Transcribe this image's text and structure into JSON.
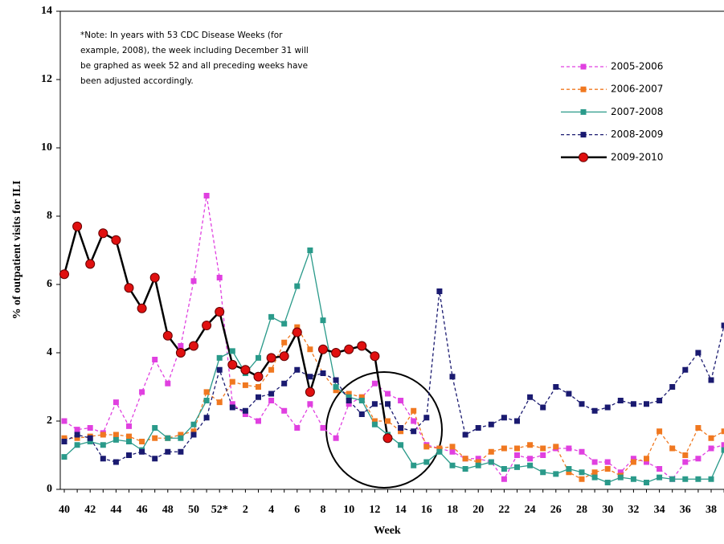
{
  "chart_data": {
    "type": "line",
    "ylabel": "% of outpatient visits for ILI",
    "xlabel": "Week",
    "note": [
      "*Note: In years with 53 CDC Disease Weeks (for",
      "example, 2008), the week including December 31 will",
      "be graphed as week 52 and all preceding weeks have",
      "been adjusted accordingly."
    ],
    "categories": [
      "40",
      null,
      "42",
      null,
      "44",
      null,
      "46",
      null,
      "48",
      null,
      "50",
      null,
      "52*",
      null,
      "2",
      null,
      "4",
      null,
      "6",
      null,
      "8",
      null,
      "10",
      null,
      "12",
      null,
      "14",
      null,
      "16",
      null,
      "18",
      null,
      "20",
      null,
      "22",
      null,
      "24",
      null,
      "26",
      null,
      "28",
      null,
      "30",
      null,
      "32",
      null,
      "34",
      null,
      "36",
      null,
      "38",
      null
    ],
    "ylim": [
      0,
      14
    ],
    "yticks": [
      0,
      2,
      4,
      6,
      8,
      10,
      12,
      14
    ],
    "series": [
      {
        "name": "2005-2006",
        "color": "#e040e0",
        "dash": true,
        "marker": "square",
        "values": [
          2.0,
          1.75,
          1.8,
          1.65,
          2.55,
          1.85,
          2.85,
          3.8,
          3.1,
          4.2,
          6.1,
          8.6,
          6.2,
          2.5,
          2.2,
          2.0,
          2.6,
          2.3,
          1.8,
          2.5,
          1.8,
          1.5,
          2.5,
          2.7,
          3.1,
          2.8,
          2.6,
          2.0,
          1.3,
          1.2,
          1.1,
          0.9,
          0.9,
          0.8,
          0.3,
          1.0,
          0.9,
          1.0,
          1.2,
          1.2,
          1.1,
          0.8,
          0.8,
          0.5,
          0.9,
          0.8,
          0.6,
          0.3,
          0.8,
          0.9,
          1.2,
          1.3
        ]
      },
      {
        "name": "2006-2007",
        "color": "#f07820",
        "dash": true,
        "marker": "square",
        "values": [
          1.5,
          1.5,
          1.55,
          1.6,
          1.6,
          1.55,
          1.4,
          1.5,
          1.5,
          1.6,
          1.7,
          2.85,
          2.55,
          3.15,
          3.05,
          3.0,
          3.5,
          4.3,
          4.75,
          4.1,
          3.4,
          2.9,
          2.8,
          2.7,
          2.0,
          2.0,
          1.7,
          2.3,
          1.25,
          1.2,
          1.25,
          0.9,
          0.8,
          1.1,
          1.2,
          1.2,
          1.3,
          1.2,
          1.25,
          0.5,
          0.3,
          0.5,
          0.6,
          0.4,
          0.8,
          0.9,
          1.7,
          1.2,
          1.0,
          1.8,
          1.5,
          1.7
        ]
      },
      {
        "name": "2007-2008",
        "color": "#2a9a8a",
        "dash": false,
        "marker": "square",
        "values": [
          0.95,
          1.3,
          1.4,
          1.3,
          1.45,
          1.4,
          1.15,
          1.8,
          1.5,
          1.5,
          1.9,
          2.6,
          3.85,
          4.05,
          3.4,
          3.85,
          5.05,
          4.85,
          5.95,
          7.0,
          4.95,
          3.0,
          2.7,
          2.6,
          1.9,
          1.6,
          1.3,
          0.7,
          0.8,
          1.1,
          0.7,
          0.6,
          0.7,
          0.8,
          0.6,
          0.65,
          0.7,
          0.5,
          0.45,
          0.6,
          0.5,
          0.35,
          0.2,
          0.35,
          0.3,
          0.2,
          0.35,
          0.3,
          0.3,
          0.3,
          0.3,
          1.15
        ]
      },
      {
        "name": "2008-2009",
        "color": "#1a1a70",
        "dash": true,
        "marker": "square",
        "values": [
          1.4,
          1.6,
          1.5,
          0.9,
          0.8,
          1.0,
          1.1,
          0.9,
          1.1,
          1.1,
          1.6,
          2.1,
          3.5,
          2.4,
          2.3,
          2.7,
          2.8,
          3.1,
          3.5,
          3.3,
          3.4,
          3.2,
          2.6,
          2.2,
          2.5,
          2.5,
          1.8,
          1.7,
          2.1,
          5.8,
          3.3,
          1.6,
          1.8,
          1.9,
          2.1,
          2.0,
          2.7,
          2.4,
          3.0,
          2.8,
          2.5,
          2.3,
          2.4,
          2.6,
          2.5,
          2.5,
          2.6,
          3.0,
          3.5,
          4.0,
          3.2,
          4.8
        ]
      },
      {
        "name": "2009-2010",
        "color": "#000000",
        "dash": false,
        "marker": "circle",
        "values": [
          6.3,
          7.7,
          6.6,
          7.5,
          7.3,
          5.9,
          5.3,
          6.2,
          4.5,
          4.0,
          4.2,
          4.8,
          5.2,
          3.65,
          3.5,
          3.3,
          3.85,
          3.9,
          4.6,
          2.85,
          4.1,
          4.0,
          4.1,
          4.2,
          3.9,
          1.5,
          null,
          null,
          null,
          null,
          null,
          null,
          null,
          null,
          null,
          null,
          null,
          null,
          null,
          null,
          null,
          null,
          null,
          null,
          null,
          null,
          null,
          null,
          null,
          null,
          null,
          null
        ]
      }
    ]
  }
}
